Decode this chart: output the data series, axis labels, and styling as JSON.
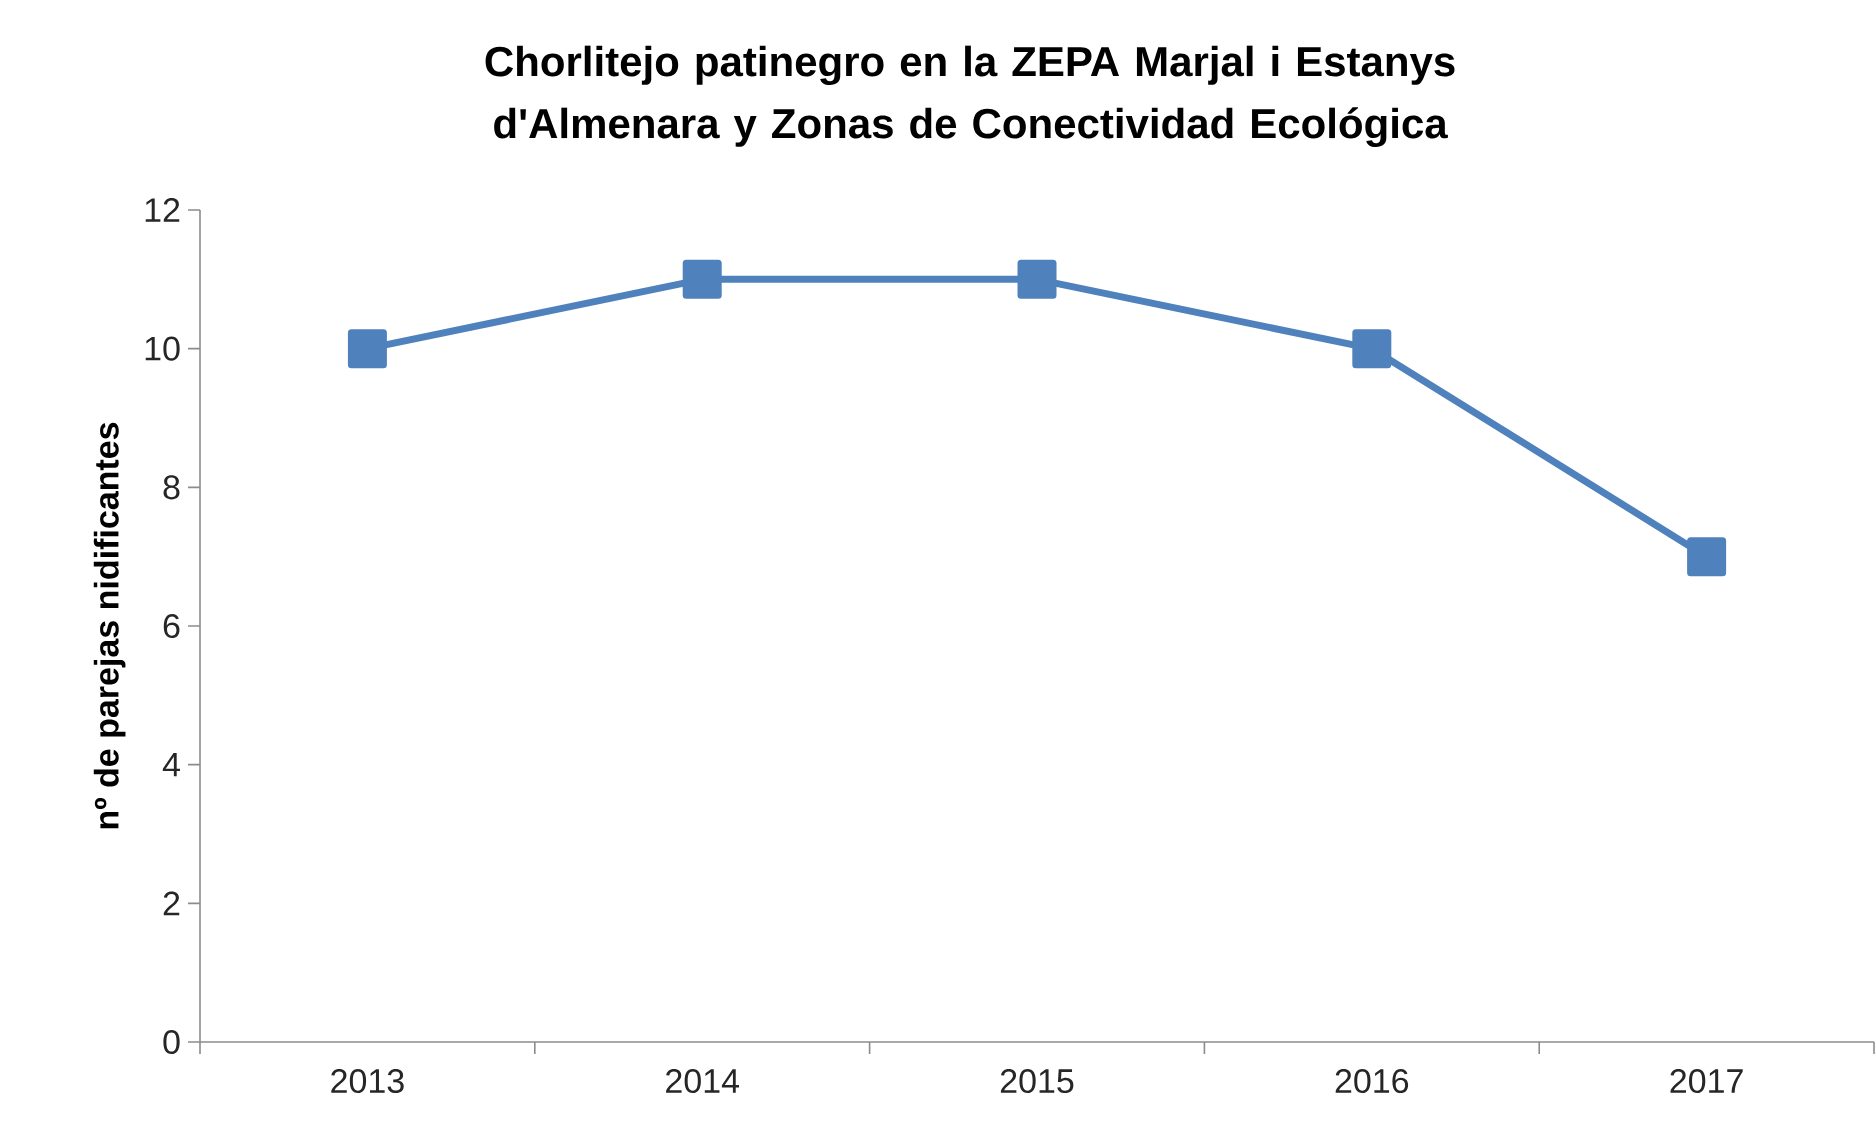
{
  "chart_data": {
    "type": "line",
    "title": "Chorlitejo patinegro en la ZEPA Marjal i Estanys d'Almenara y Zonas de Conectividad Ecológica",
    "ylabel": "nº de parejas nidificantes",
    "categories": [
      "2013",
      "2014",
      "2015",
      "2016",
      "2017"
    ],
    "series": [
      {
        "color": "#4f81bd",
        "values": [
          10,
          11,
          11,
          10,
          7
        ]
      }
    ],
    "ylim": [
      0,
      12
    ],
    "yticks": [
      0,
      2,
      4,
      6,
      8,
      10,
      12
    ],
    "grid": false,
    "legend": false,
    "marker": "square",
    "line_style": "solid"
  }
}
